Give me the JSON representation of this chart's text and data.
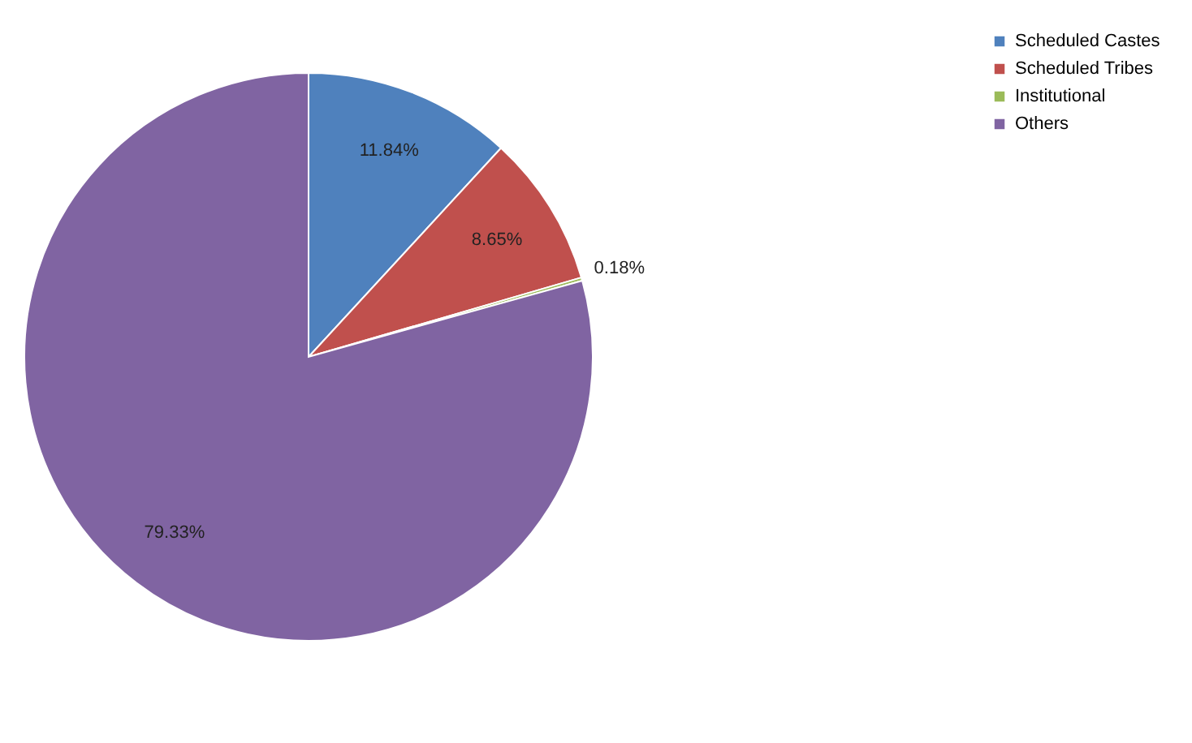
{
  "chart_data": {
    "type": "pie",
    "categories": [
      "Scheduled Castes",
      "Scheduled Tribes",
      "Institutional",
      "Others"
    ],
    "values": [
      11.84,
      8.65,
      0.18,
      79.33
    ],
    "colors": [
      "#4f81bd",
      "#c0504d",
      "#9bbb59",
      "#8064a2"
    ],
    "value_labels": [
      "11.84%",
      "8.65%",
      "0.18%",
      "79.33%"
    ],
    "legend": "right"
  }
}
